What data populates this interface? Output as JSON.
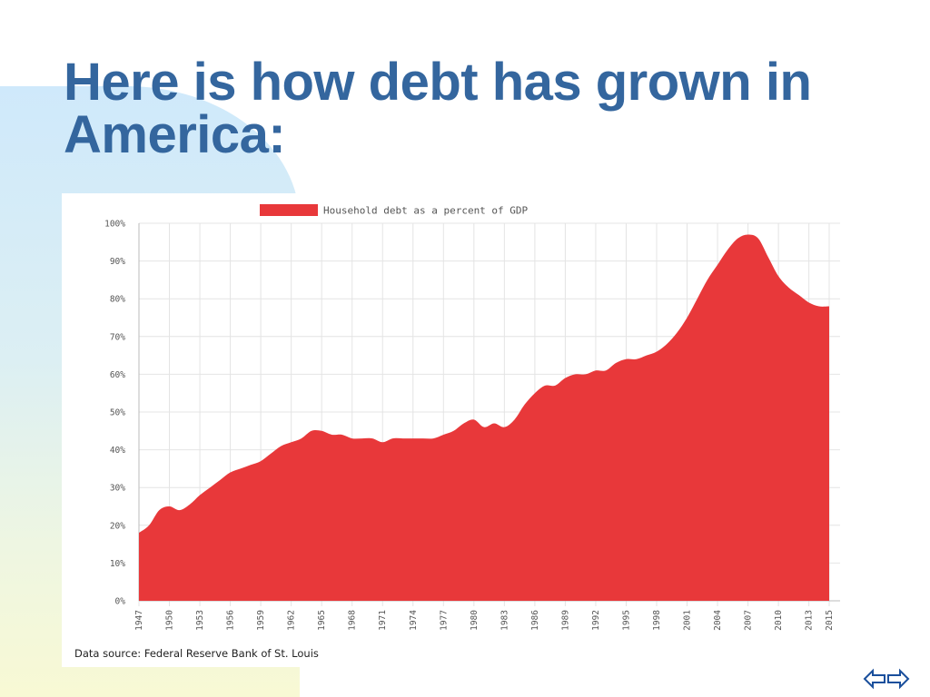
{
  "slide": {
    "title": "Here is how debt has grown in America:",
    "accent_color": "#34669e"
  },
  "chart_data": {
    "type": "area",
    "legend": {
      "label": "Household debt as a percent of GDP",
      "placement": "top",
      "color": "#e8383a"
    },
    "ylim": [
      0,
      100
    ],
    "y_ticks": [
      "0%",
      "10%",
      "20%",
      "30%",
      "40%",
      "50%",
      "60%",
      "70%",
      "80%",
      "90%",
      "100%"
    ],
    "x_range": [
      1947,
      2015
    ],
    "x_ticks": [
      "1947",
      "1950",
      "1953",
      "1956",
      "1959",
      "1962",
      "1965",
      "1968",
      "1971",
      "1974",
      "1977",
      "1980",
      "1983",
      "1986",
      "1989",
      "1992",
      "1995",
      "1998",
      "2001",
      "2004",
      "2007",
      "2010",
      "2013",
      "2015"
    ],
    "grid": true,
    "series": [
      {
        "name": "Household debt as a percent of GDP",
        "x": [
          1947,
          1948,
          1949,
          1950,
          1951,
          1952,
          1953,
          1954,
          1955,
          1956,
          1957,
          1958,
          1959,
          1960,
          1961,
          1962,
          1963,
          1964,
          1965,
          1966,
          1967,
          1968,
          1969,
          1970,
          1971,
          1972,
          1973,
          1974,
          1975,
          1976,
          1977,
          1978,
          1979,
          1980,
          1981,
          1982,
          1983,
          1984,
          1985,
          1986,
          1987,
          1988,
          1989,
          1990,
          1991,
          1992,
          1993,
          1994,
          1995,
          1996,
          1997,
          1998,
          1999,
          2000,
          2001,
          2002,
          2003,
          2004,
          2005,
          2006,
          2007,
          2008,
          2009,
          2010,
          2011,
          2012,
          2013,
          2014,
          2015
        ],
        "values": [
          18,
          20,
          24,
          25,
          24,
          25.5,
          28,
          30,
          32,
          34,
          35,
          36,
          37,
          39,
          41,
          42,
          43,
          45,
          45,
          44,
          44,
          43,
          43,
          43,
          42,
          43,
          43,
          43,
          43,
          43,
          44,
          45,
          47,
          48,
          46,
          47,
          46,
          48,
          52,
          55,
          57,
          57,
          59,
          60,
          60,
          61,
          61,
          63,
          64,
          64,
          65,
          66,
          68,
          71,
          75,
          80,
          85,
          89,
          93,
          96,
          97,
          96,
          91,
          86,
          83,
          81,
          79,
          78,
          78
        ]
      }
    ],
    "source": "Data source: Federal Reserve Bank of St. Louis"
  },
  "nav": {
    "icon": "prev-next-arrows-icon"
  }
}
